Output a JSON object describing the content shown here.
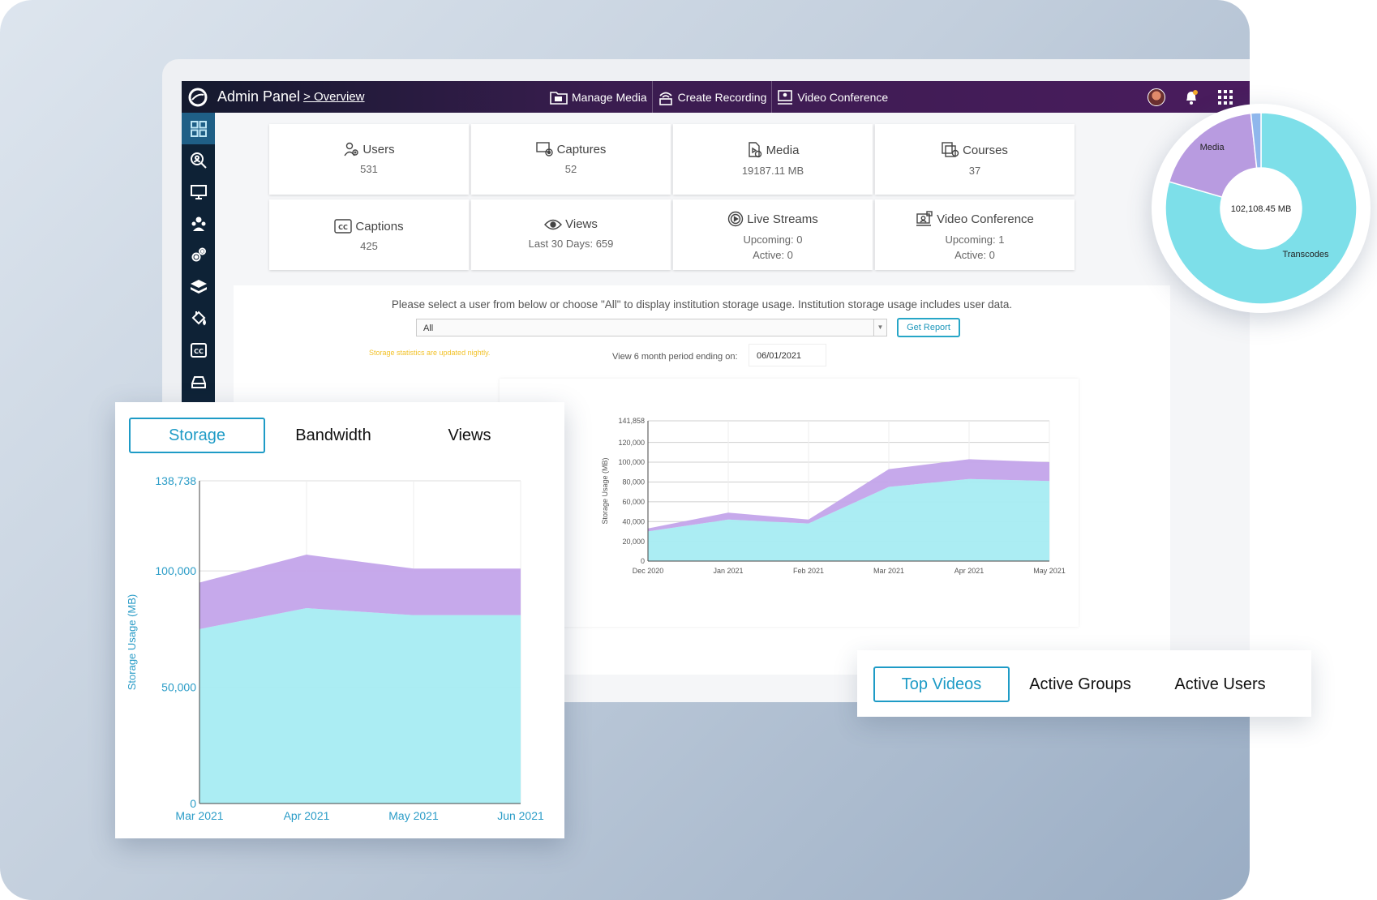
{
  "header": {
    "app_title": "Admin Panel",
    "breadcrumb": "> Overview",
    "actions": [
      {
        "label": "Manage Media",
        "icon": "folder-icon"
      },
      {
        "label": "Create Recording",
        "icon": "broadcast-icon"
      },
      {
        "label": "Video Conference",
        "icon": "conference-icon"
      }
    ],
    "right_icons": [
      "avatar",
      "bell-icon",
      "apps-grid-icon"
    ]
  },
  "sidebar": {
    "items": [
      {
        "icon": "dashboard-icon",
        "active": true
      },
      {
        "icon": "search-user-icon"
      },
      {
        "icon": "monitor-icon"
      },
      {
        "icon": "group-icon"
      },
      {
        "icon": "settings-cogs-icon"
      },
      {
        "icon": "layers-icon"
      },
      {
        "icon": "paint-bucket-icon"
      },
      {
        "icon": "cc-icon"
      },
      {
        "icon": "storage-drive-icon"
      }
    ]
  },
  "stats": [
    {
      "label": "Users",
      "value": "531",
      "icon": "user-icon"
    },
    {
      "label": "Captures",
      "value": "52",
      "icon": "capture-icon"
    },
    {
      "label": "Media",
      "value": "19187.11 MB",
      "icon": "media-file-icon"
    },
    {
      "label": "Courses",
      "value": "37",
      "icon": "courses-icon"
    },
    {
      "label": "Captions",
      "value": "425",
      "icon": "cc-icon"
    },
    {
      "label": "Views",
      "value": "Last 30 Days: 659",
      "icon": "eye-icon"
    },
    {
      "label": "Live Streams",
      "value": "Upcoming: 0",
      "value2": "Active: 0",
      "icon": "live-stream-icon"
    },
    {
      "label": "Video Conference",
      "value": "Upcoming: 1",
      "value2": "Active: 0",
      "icon": "conference-icon"
    }
  ],
  "report": {
    "instructions": "Please select a user from below or choose \"All\" to display institution storage usage. Institution storage usage includes user data.",
    "user_select_value": "All",
    "get_report_label": "Get Report",
    "nightly_note": "Storage statistics are updated nightly.",
    "period_label": "View 6 month period ending on:",
    "period_date": "06/01/2021"
  },
  "tabs_primary": [
    {
      "label": "Storage",
      "active": true
    },
    {
      "label": "Bandwidth",
      "active": false
    },
    {
      "label": "Views",
      "active": false
    }
  ],
  "tabs_secondary": [
    {
      "label": "Top Videos",
      "active": true
    },
    {
      "label": "Active Groups",
      "active": false
    },
    {
      "label": "Active Users",
      "active": false
    }
  ],
  "colors": {
    "transcodes": "#7ddfe9",
    "media": "#b89be0",
    "accent": "#1e9bc6",
    "topbar": "#3a1c4f",
    "sidebar": "#0e2236"
  },
  "chart_data": [
    {
      "type": "area",
      "id": "storage-6month",
      "ylabel": "Storage Usage (MB)",
      "x": [
        "Dec 2020",
        "Jan 2021",
        "Feb 2021",
        "Mar 2021",
        "Apr 2021",
        "May 2021"
      ],
      "y_ticks": [
        "0",
        "20,000",
        "40,000",
        "60,000",
        "80,000",
        "100,000",
        "120,000",
        "141,858"
      ],
      "ylim": [
        0,
        141858
      ],
      "stacked": true,
      "series": [
        {
          "values": [
            30000,
            42000,
            38000,
            75000,
            83000,
            81000
          ],
          "color": "#a6ecf2"
        },
        {
          "values": [
            3000,
            7000,
            4000,
            18000,
            20000,
            19000
          ],
          "color": "#c3a4ea"
        }
      ]
    },
    {
      "type": "area",
      "id": "storage-zoom",
      "ylabel": "Storage Usage (MB)",
      "x": [
        "Mar 2021",
        "Apr 2021",
        "May 2021",
        "Jun 2021"
      ],
      "y_ticks": [
        "0",
        "50,000",
        "100,000",
        "138,738"
      ],
      "ylim": [
        0,
        138738
      ],
      "stacked": true,
      "series": [
        {
          "values": [
            75000,
            84000,
            81000,
            81000
          ],
          "color": "#a6ecf2"
        },
        {
          "values": [
            20000,
            23000,
            20000,
            20000
          ],
          "color": "#c3a4ea"
        }
      ]
    },
    {
      "type": "pie",
      "id": "storage-donut",
      "center_label": "102,108.45 MB",
      "slices": [
        {
          "label": "Transcodes",
          "value": 79.5,
          "color": "#7ddfe9"
        },
        {
          "label": "Media",
          "value": 18.8,
          "color": "#b89be0"
        },
        {
          "label": "",
          "value": 1.7,
          "color": "#8fb7ec"
        }
      ]
    }
  ]
}
